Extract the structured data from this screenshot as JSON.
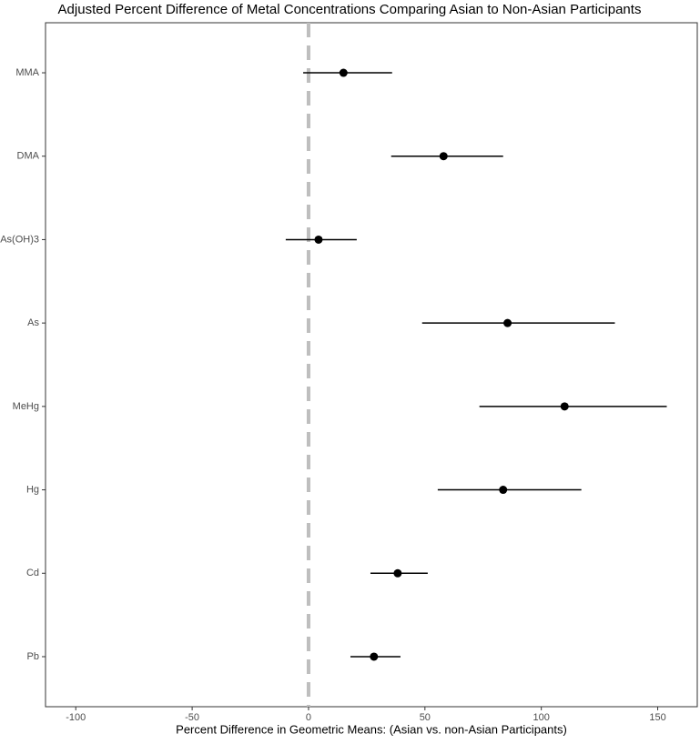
{
  "chart_data": {
    "type": "forest",
    "title": "Adjusted Percent Difference of Metal Concentrations Comparing Asian to Non-Asian Participants",
    "x_label": "Percent Difference in Geometric Means: (Asian vs. non-Asian Participants)",
    "categories": [
      "MMA",
      "DMA",
      "As(OH)3",
      "As",
      "MeHg",
      "Hg",
      "Cd",
      "Pb"
    ],
    "values": [
      15,
      58,
      4.3,
      85.5,
      110,
      83.6,
      38.3,
      28.1
    ],
    "lower": [
      -2.3,
      35.5,
      -9.8,
      48.8,
      73.4,
      55.5,
      26.6,
      18
    ],
    "upper": [
      35.9,
      83.6,
      20.7,
      131.6,
      153.9,
      117.2,
      51.2,
      39.5
    ],
    "color": "#000000",
    "ref_line": 0,
    "ref_color": "#bebebe",
    "xlim": [
      -113,
      167
    ],
    "xticks": [
      -100,
      -50,
      0,
      50,
      100,
      150
    ]
  }
}
